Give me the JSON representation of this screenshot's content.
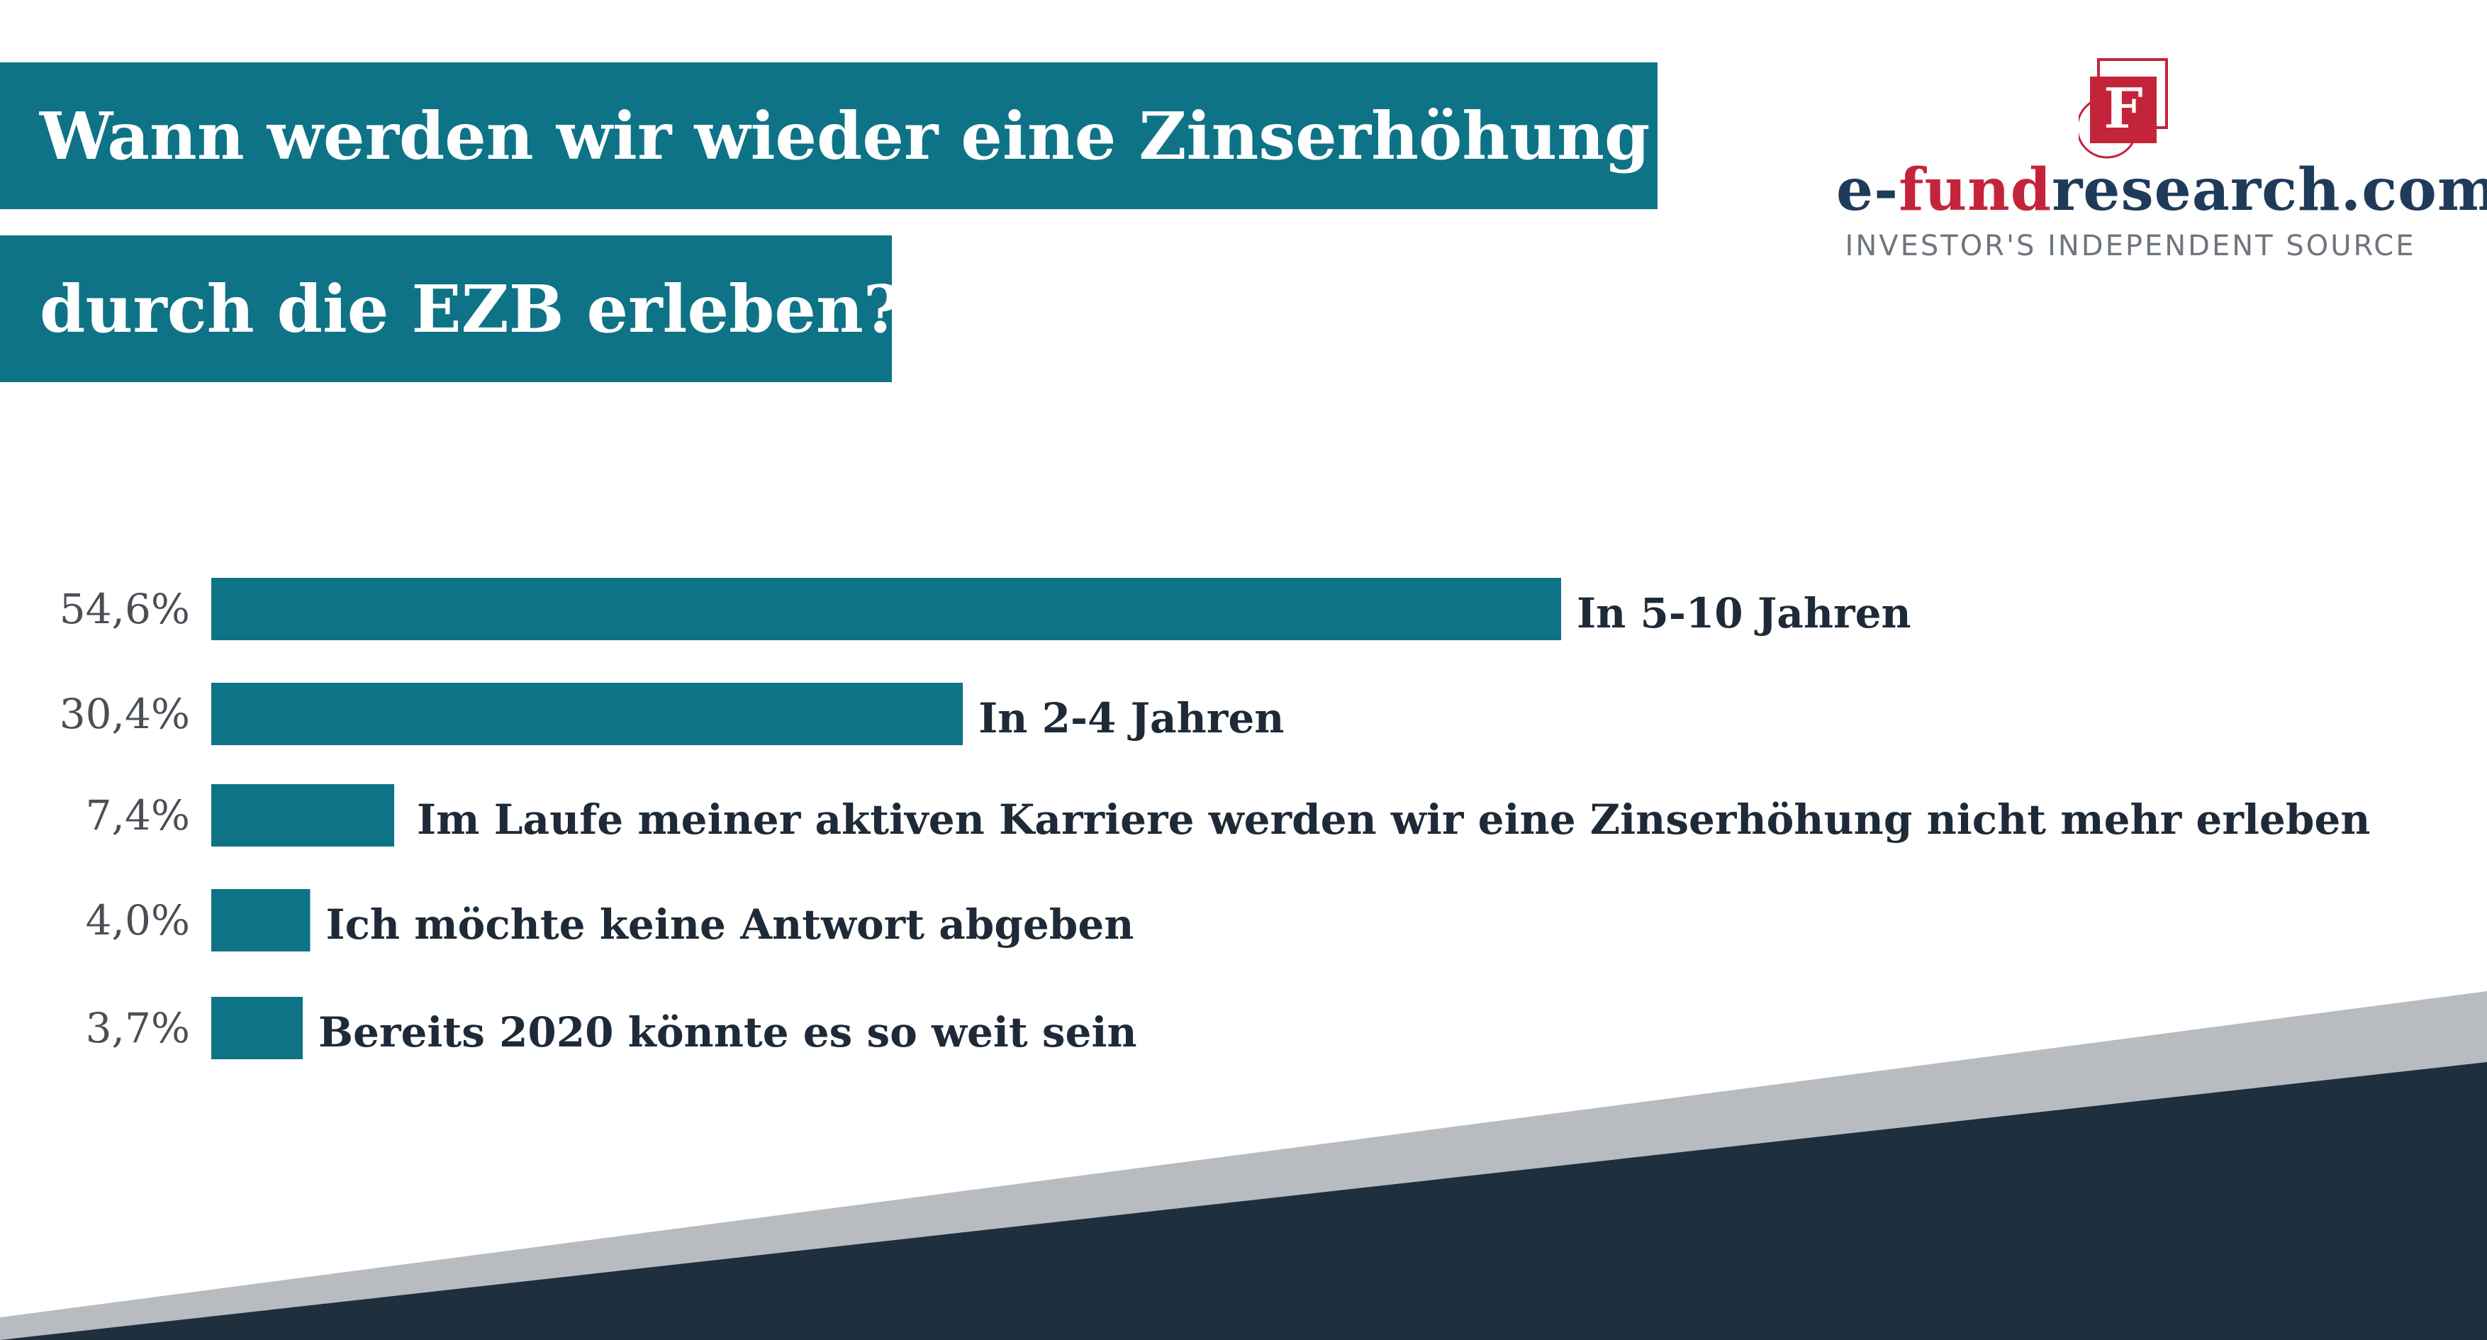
{
  "header": {
    "title_line1": "Wann werden wir wieder eine Zinserhöhung",
    "title_line2": "durch die EZB erleben?"
  },
  "logo": {
    "mark_letter": "F",
    "name_prefix": "e-",
    "name_accent": "fund",
    "name_suffix": "research.com",
    "tagline": "INVESTOR'S INDEPENDENT SOURCE"
  },
  "colors": {
    "bar": "#0e7386",
    "title_band": "#0e7386",
    "logo_red": "#c4243a",
    "logo_navy": "#1f3b5a",
    "footer_gray": "#b8bcc0",
    "footer_navy": "#1e2f3e"
  },
  "chart_data": {
    "type": "bar",
    "orientation": "horizontal",
    "categories": [
      "In 5-10 Jahren",
      "In 2-4 Jahren",
      "Im Laufe meiner aktiven Karriere werden wir eine Zinserhöhung nicht mehr erleben",
      "Ich möchte keine Antwort abgeben",
      "Bereits 2020 könnte es so weit sein"
    ],
    "values": [
      54.6,
      30.4,
      7.4,
      4.0,
      3.7
    ],
    "value_labels": [
      "54,6%",
      "30,4%",
      "7,4%",
      "4,0%",
      "3,7%"
    ],
    "xlim": [
      0,
      54.6
    ],
    "grid": false,
    "legend": "none"
  }
}
